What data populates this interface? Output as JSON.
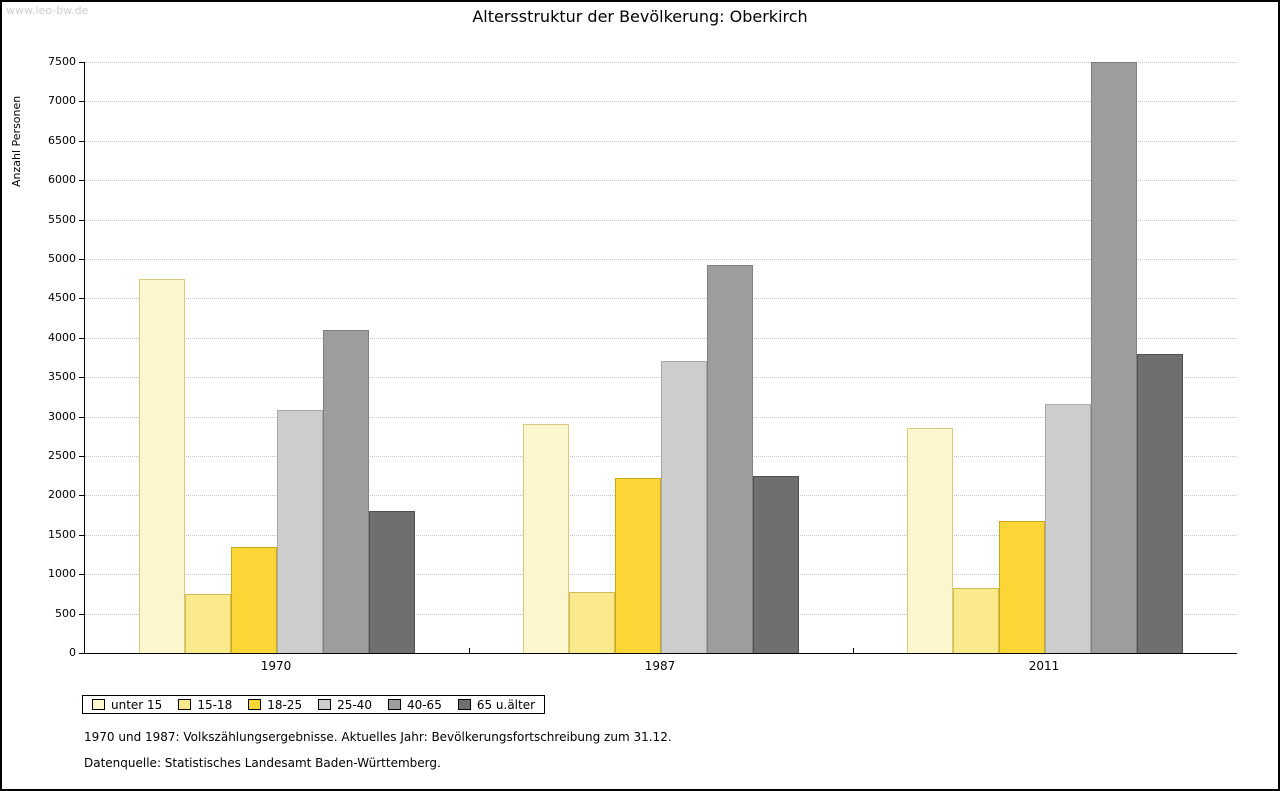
{
  "watermark": "www.leo-bw.de",
  "title": "Altersstruktur der Bevölkerung: Oberkirch",
  "footnotes": [
    "1970 und 1987: Volkszählungsergebnisse. Aktuelles Jahr: Bevölkerungsfortschreibung zum 31.12.",
    "Datenquelle: Statistisches Landesamt Baden-Württemberg."
  ],
  "chart_data": {
    "type": "bar",
    "title": "Altersstruktur der Bevölkerung: Oberkirch",
    "xlabel": "",
    "ylabel": "Anzahl Personen",
    "ylim": [
      0,
      7500
    ],
    "ytick_step": 500,
    "grid": true,
    "legend_position": "bottom-left",
    "categories": [
      "1970",
      "1987",
      "2011"
    ],
    "series": [
      {
        "name": "unter 15",
        "color": "#FCF6CF",
        "border": "#D8CA82",
        "values": [
          4750,
          2900,
          2850
        ]
      },
      {
        "name": "15-18",
        "color": "#FBE98E",
        "border": "#D2BC55",
        "values": [
          750,
          770,
          820
        ]
      },
      {
        "name": "18-25",
        "color": "#FBD636",
        "border": "#C9A81C",
        "values": [
          1350,
          2220,
          1680
        ]
      },
      {
        "name": "25-40",
        "color": "#CDCDCD",
        "border": "#A9A9A9",
        "values": [
          3080,
          3700,
          3160
        ]
      },
      {
        "name": "40-65",
        "color": "#9D9D9D",
        "border": "#7F7F7F",
        "values": [
          4100,
          4920,
          7500
        ]
      },
      {
        "name": "65 u.älter",
        "color": "#6F6F6F",
        "border": "#4F4F4F",
        "values": [
          1800,
          2240,
          3790
        ]
      }
    ]
  }
}
